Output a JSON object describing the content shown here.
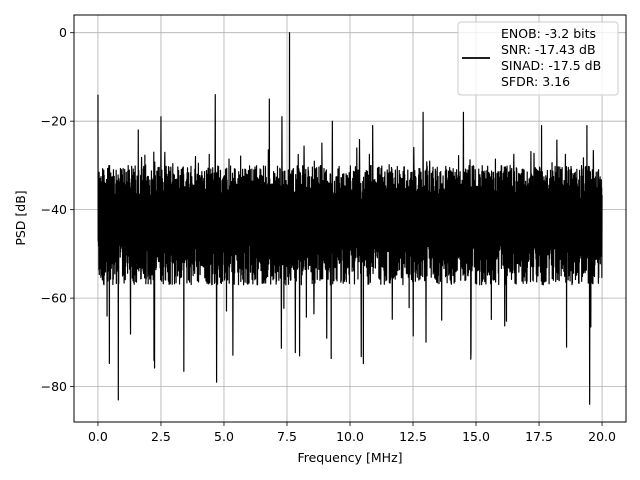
{
  "chart_data": {
    "type": "line",
    "title": "",
    "xlabel": "Frequency [MHz]",
    "ylabel": "PSD [dB]",
    "xlim": [
      -0.95,
      20.95
    ],
    "ylim": [
      -88,
      4
    ],
    "xticks": [
      0.0,
      2.5,
      5.0,
      7.5,
      10.0,
      12.5,
      15.0,
      17.5,
      20.0
    ],
    "xtick_labels": [
      "0.0",
      "2.5",
      "5.0",
      "7.5",
      "10.0",
      "12.5",
      "15.0",
      "17.5",
      "20.0"
    ],
    "yticks": [
      0,
      -20,
      -40,
      -60,
      -80
    ],
    "ytick_labels": [
      "0",
      "−20",
      "−40",
      "−60",
      "−80"
    ],
    "grid": true,
    "legend_position": "top-right",
    "legend_entries": [
      "ENOB: -3.2 bits",
      "SNR: -17.43 dB",
      "SINAD: -17.5 dB",
      "SFDR: 3.16"
    ],
    "series": [
      {
        "color": "#000000",
        "x_range": [
          0,
          20
        ],
        "noise_band": {
          "upper_envelope": -30,
          "lower_envelope": -55,
          "min_dips": -84
        },
        "peaks": [
          {
            "x": 0.0,
            "y": -14
          },
          {
            "x": 1.6,
            "y": -22
          },
          {
            "x": 2.5,
            "y": -19
          },
          {
            "x": 4.65,
            "y": -14
          },
          {
            "x": 6.8,
            "y": -15
          },
          {
            "x": 7.3,
            "y": -19
          },
          {
            "x": 7.6,
            "y": 0
          },
          {
            "x": 9.3,
            "y": -20
          },
          {
            "x": 10.9,
            "y": -21
          },
          {
            "x": 12.9,
            "y": -18
          },
          {
            "x": 14.5,
            "y": -18
          },
          {
            "x": 17.6,
            "y": -21
          },
          {
            "x": 19.4,
            "y": -21
          }
        ],
        "dips": [
          {
            "x": 0.8,
            "y": -83
          },
          {
            "x": 4.7,
            "y": -79
          },
          {
            "x": 19.5,
            "y": -84
          }
        ]
      }
    ]
  }
}
